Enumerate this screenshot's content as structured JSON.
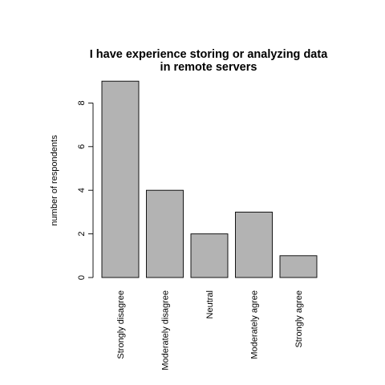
{
  "chart_data": {
    "type": "bar",
    "title_lines": [
      "I have experience storing or analyzing data",
      "in remote servers"
    ],
    "ylabel": "number of respondents",
    "xlabel": "",
    "categories": [
      "Strongly disagree",
      "Moderately disagree",
      "Neutral",
      "Moderately agree",
      "Strongly agree"
    ],
    "values": [
      9,
      4,
      2,
      3,
      1
    ],
    "yticks": [
      "0",
      "2",
      "4",
      "6",
      "8"
    ],
    "ylim": [
      0,
      9
    ],
    "grid": false,
    "legend": "none",
    "bar_color": "#b3b3b3",
    "edge_color": "#000000"
  }
}
